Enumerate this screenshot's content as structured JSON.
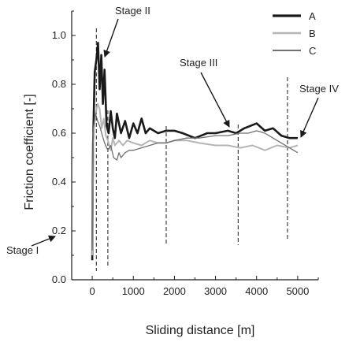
{
  "chart_data": {
    "type": "line",
    "xlabel": "Sliding distance [m]",
    "ylabel": "Friction coefficient [-]",
    "xlim": [
      -500,
      5500
    ],
    "ylim": [
      0.0,
      1.1
    ],
    "xticks": [
      0,
      1000,
      2000,
      3000,
      4000,
      5000
    ],
    "yticks": [
      0.0,
      0.2,
      0.4,
      0.6,
      0.8,
      1.0
    ],
    "xtick_labels": [
      "0",
      "1000",
      "2000",
      "3000",
      "4000",
      "5000"
    ],
    "ytick_labels": [
      "0.0",
      "0.2",
      "0.4",
      "0.6",
      "0.8",
      "1.0"
    ],
    "legend_position": "top-right",
    "series": [
      {
        "name": "A",
        "color": "#1a1a1a",
        "x": [
          0,
          20,
          60,
          100,
          140,
          180,
          220,
          260,
          300,
          350,
          400,
          450,
          500,
          550,
          600,
          700,
          800,
          900,
          1000,
          1100,
          1200,
          1300,
          1400,
          1600,
          1800,
          2000,
          2200,
          2500,
          2800,
          3000,
          3300,
          3500,
          3700,
          4000,
          4200,
          4400,
          4600,
          4800,
          5000
        ],
        "y": [
          0.08,
          0.55,
          0.85,
          0.9,
          0.97,
          0.78,
          0.92,
          0.72,
          0.86,
          0.63,
          0.6,
          0.69,
          0.62,
          0.58,
          0.68,
          0.6,
          0.65,
          0.58,
          0.64,
          0.6,
          0.66,
          0.6,
          0.62,
          0.6,
          0.61,
          0.61,
          0.6,
          0.58,
          0.6,
          0.6,
          0.61,
          0.6,
          0.62,
          0.64,
          0.61,
          0.62,
          0.59,
          0.58,
          0.58
        ]
      },
      {
        "name": "B",
        "color": "#b5b5b5",
        "x": [
          0,
          30,
          80,
          130,
          180,
          230,
          280,
          330,
          380,
          450,
          500,
          550,
          650,
          750,
          850,
          1000,
          1200,
          1400,
          1600,
          1800,
          2000,
          2300,
          2600,
          3000,
          3300,
          3600,
          3900,
          4200,
          4500,
          4800,
          5000
        ],
        "y": [
          0.1,
          0.6,
          0.68,
          0.72,
          0.7,
          0.62,
          0.66,
          0.59,
          0.57,
          0.53,
          0.58,
          0.55,
          0.57,
          0.55,
          0.57,
          0.56,
          0.55,
          0.57,
          0.56,
          0.56,
          0.57,
          0.57,
          0.56,
          0.55,
          0.55,
          0.54,
          0.55,
          0.53,
          0.55,
          0.54,
          0.55
        ]
      },
      {
        "name": "C",
        "color": "#707070",
        "x": [
          0,
          30,
          80,
          130,
          180,
          230,
          300,
          380,
          450,
          520,
          600,
          650,
          700,
          800,
          900,
          1000,
          1200,
          1400,
          1600,
          1800,
          2000,
          2300,
          2600,
          3000,
          3300,
          3600,
          3800,
          4000,
          4200,
          4400,
          4600,
          4800,
          5000
        ],
        "y": [
          0.12,
          0.62,
          0.68,
          0.65,
          0.63,
          0.6,
          0.56,
          0.53,
          0.55,
          0.5,
          0.49,
          0.52,
          0.5,
          0.52,
          0.53,
          0.53,
          0.54,
          0.55,
          0.56,
          0.56,
          0.57,
          0.58,
          0.58,
          0.59,
          0.59,
          0.6,
          0.6,
          0.61,
          0.6,
          0.58,
          0.56,
          0.54,
          0.52
        ]
      }
    ],
    "stage_boundaries": [
      100,
      380,
      1800,
      3550,
      4750
    ],
    "annotations": [
      {
        "label": "Stage I"
      },
      {
        "label": "Stage II"
      },
      {
        "label": "Stage III"
      },
      {
        "label": "Stage IV"
      }
    ]
  }
}
